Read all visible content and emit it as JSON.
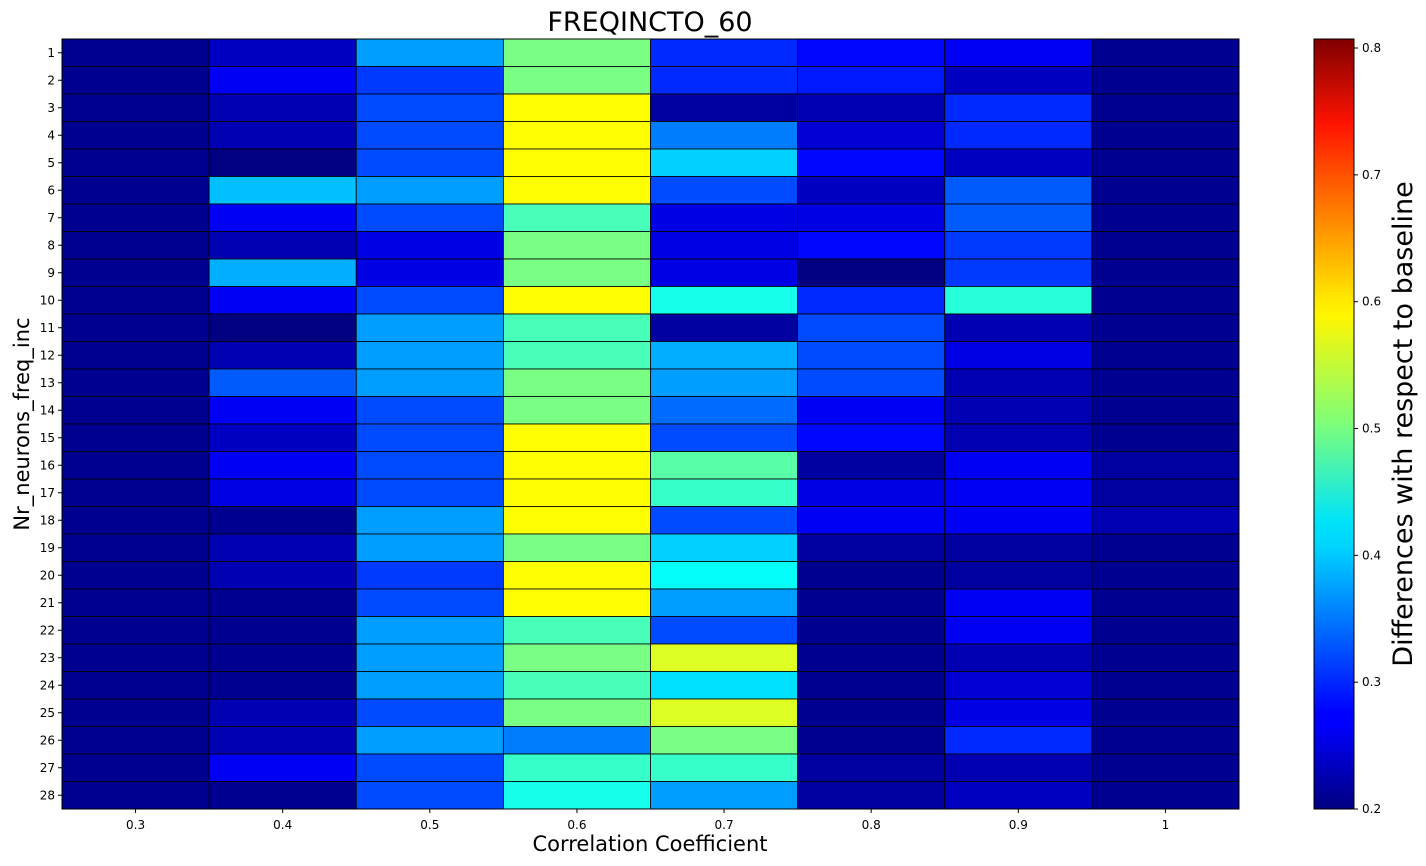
{
  "chart_data": {
    "type": "heatmap",
    "title": "FREQINCTO_60",
    "xlabel": "Correlation Coefficient",
    "ylabel": "Nr_neurons_freq_inc",
    "x_categories": [
      "0.3",
      "0.4",
      "0.5",
      "0.6",
      "0.7",
      "0.8",
      "0.9",
      "1"
    ],
    "y_categories": [
      "1",
      "2",
      "3",
      "4",
      "5",
      "6",
      "7",
      "8",
      "9",
      "10",
      "11",
      "12",
      "13",
      "14",
      "15",
      "16",
      "17",
      "18",
      "19",
      "20",
      "21",
      "22",
      "23",
      "24",
      "25",
      "26",
      "27",
      "28"
    ],
    "values": [
      [
        0.21,
        0.24,
        0.37,
        0.5,
        0.3,
        0.28,
        0.27,
        0.21
      ],
      [
        0.21,
        0.27,
        0.31,
        0.5,
        0.3,
        0.29,
        0.24,
        0.21
      ],
      [
        0.21,
        0.23,
        0.32,
        0.58,
        0.22,
        0.23,
        0.3,
        0.21
      ],
      [
        0.21,
        0.23,
        0.32,
        0.58,
        0.35,
        0.25,
        0.3,
        0.21
      ],
      [
        0.21,
        0.2,
        0.32,
        0.58,
        0.4,
        0.28,
        0.24,
        0.21
      ],
      [
        0.21,
        0.39,
        0.37,
        0.58,
        0.32,
        0.24,
        0.33,
        0.21
      ],
      [
        0.21,
        0.27,
        0.32,
        0.47,
        0.26,
        0.26,
        0.33,
        0.21
      ],
      [
        0.21,
        0.23,
        0.26,
        0.5,
        0.26,
        0.28,
        0.31,
        0.21
      ],
      [
        0.21,
        0.38,
        0.26,
        0.5,
        0.26,
        0.2,
        0.31,
        0.21
      ],
      [
        0.21,
        0.27,
        0.32,
        0.58,
        0.44,
        0.3,
        0.45,
        0.21
      ],
      [
        0.21,
        0.2,
        0.37,
        0.47,
        0.22,
        0.32,
        0.23,
        0.21
      ],
      [
        0.21,
        0.23,
        0.37,
        0.47,
        0.38,
        0.32,
        0.26,
        0.21
      ],
      [
        0.21,
        0.33,
        0.37,
        0.5,
        0.37,
        0.32,
        0.23,
        0.21
      ],
      [
        0.21,
        0.27,
        0.32,
        0.5,
        0.34,
        0.27,
        0.23,
        0.21
      ],
      [
        0.21,
        0.24,
        0.32,
        0.58,
        0.32,
        0.28,
        0.23,
        0.21
      ],
      [
        0.21,
        0.27,
        0.32,
        0.58,
        0.48,
        0.22,
        0.27,
        0.22
      ],
      [
        0.21,
        0.26,
        0.32,
        0.58,
        0.46,
        0.26,
        0.27,
        0.22
      ],
      [
        0.21,
        0.21,
        0.37,
        0.58,
        0.32,
        0.27,
        0.27,
        0.23
      ],
      [
        0.21,
        0.23,
        0.37,
        0.5,
        0.4,
        0.22,
        0.22,
        0.21
      ],
      [
        0.21,
        0.23,
        0.31,
        0.58,
        0.43,
        0.21,
        0.22,
        0.21
      ],
      [
        0.21,
        0.21,
        0.32,
        0.58,
        0.37,
        0.21,
        0.27,
        0.21
      ],
      [
        0.21,
        0.21,
        0.37,
        0.47,
        0.32,
        0.21,
        0.27,
        0.21
      ],
      [
        0.21,
        0.21,
        0.37,
        0.5,
        0.56,
        0.21,
        0.23,
        0.21
      ],
      [
        0.21,
        0.21,
        0.37,
        0.47,
        0.41,
        0.21,
        0.25,
        0.21
      ],
      [
        0.21,
        0.23,
        0.32,
        0.5,
        0.56,
        0.21,
        0.26,
        0.21
      ],
      [
        0.21,
        0.23,
        0.37,
        0.35,
        0.5,
        0.21,
        0.3,
        0.21
      ],
      [
        0.21,
        0.27,
        0.32,
        0.46,
        0.46,
        0.22,
        0.23,
        0.21
      ],
      [
        0.21,
        0.21,
        0.32,
        0.44,
        0.37,
        0.22,
        0.24,
        0.21
      ]
    ],
    "colormap": "jet",
    "colorbar": {
      "label": "Differences with respect to baseline",
      "vmin": 0.2,
      "vmax": 0.8071,
      "ticks": [
        "0.2",
        "0.3",
        "0.4",
        "0.5",
        "0.6",
        "0.7",
        "0.8"
      ]
    },
    "grid": false,
    "cell_edgecolor": "#000000"
  }
}
